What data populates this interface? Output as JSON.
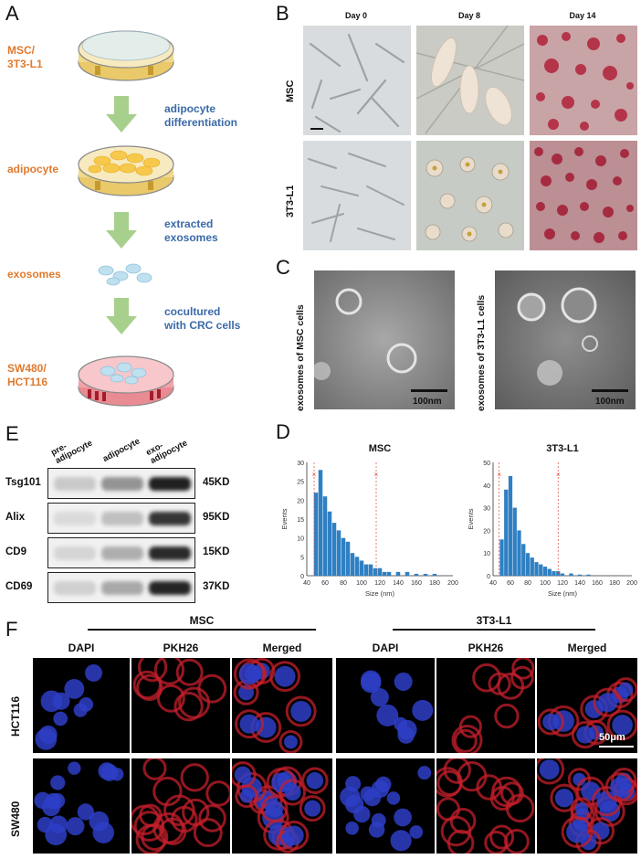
{
  "panels": {
    "a": {
      "letter": "A",
      "stage1": [
        "MSC/",
        "3T3-L1"
      ],
      "step1": [
        "adipocyte",
        "differentiation"
      ],
      "stage2": "adipocyte",
      "step2": [
        "extracted",
        "exosomes"
      ],
      "stage3": "exosomes",
      "step3": [
        "cocultured",
        "with CRC cells"
      ],
      "stage4": [
        "SW480/",
        "HCT116"
      ]
    },
    "b": {
      "letter": "B",
      "columns": [
        "Day 0",
        "Day 8",
        "Day 14"
      ],
      "rows": [
        "MSC",
        "3T3-L1"
      ]
    },
    "c": {
      "letter": "C",
      "left_label": "exosomes of MSC cells",
      "right_label": "exosomes of 3T3-L1 cells",
      "scale": "100nm"
    },
    "e": {
      "letter": "E",
      "lanes": [
        [
          "pre-",
          "adipocyte"
        ],
        [
          "adipocyte"
        ],
        [
          "exo-",
          "adipocyte"
        ]
      ],
      "proteins": [
        {
          "name": "Tsg101",
          "kd": "45KD",
          "intensity": [
            0.18,
            0.42,
            0.95
          ]
        },
        {
          "name": "Alix",
          "kd": "95KD",
          "intensity": [
            0.1,
            0.22,
            0.85
          ]
        },
        {
          "name": "CD9",
          "kd": "15KD",
          "intensity": [
            0.12,
            0.3,
            0.9
          ]
        },
        {
          "name": "CD69",
          "kd": "37KD",
          "intensity": [
            0.15,
            0.32,
            0.92
          ]
        }
      ]
    },
    "d": {
      "letter": "D"
    },
    "f": {
      "letter": "F",
      "groups": [
        "MSC",
        "3T3-L1"
      ],
      "channels": [
        "DAPI",
        "PKH26",
        "Merged"
      ],
      "rows": [
        "HCT116",
        "SW480"
      ],
      "scale": "50μm"
    }
  },
  "chart_data": [
    {
      "type": "bar",
      "title": "MSC",
      "xlabel": "Size (nm)",
      "ylabel": "Events",
      "xlim": [
        40,
        200
      ],
      "ylim": [
        0,
        30
      ],
      "xticks": [
        40,
        60,
        80,
        100,
        120,
        140,
        160,
        180,
        200
      ],
      "yticks": [
        0,
        5,
        10,
        15,
        20,
        25,
        30
      ],
      "markers_x": [
        48,
        116
      ],
      "x": [
        50,
        55,
        60,
        65,
        70,
        75,
        80,
        85,
        90,
        95,
        100,
        105,
        110,
        115,
        120,
        125,
        130,
        140,
        150,
        160,
        170,
        180
      ],
      "values": [
        22,
        28,
        21,
        17,
        14,
        12,
        10,
        9,
        6,
        5,
        4,
        3,
        3,
        2,
        2,
        1,
        1,
        1,
        1,
        0.5,
        0.5,
        0.5
      ]
    },
    {
      "type": "bar",
      "title": "3T3-L1",
      "xlabel": "Size (nm)",
      "ylabel": "Events",
      "xlim": [
        40,
        200
      ],
      "ylim": [
        0,
        50
      ],
      "xticks": [
        40,
        60,
        80,
        100,
        120,
        140,
        160,
        180,
        200
      ],
      "yticks": [
        0,
        10,
        20,
        30,
        40,
        50
      ],
      "markers_x": [
        47,
        115
      ],
      "x": [
        50,
        55,
        60,
        65,
        70,
        75,
        80,
        85,
        90,
        95,
        100,
        105,
        110,
        115,
        120,
        130,
        140,
        150
      ],
      "values": [
        16,
        38,
        44,
        30,
        20,
        14,
        10,
        8,
        6,
        5,
        4,
        3,
        2,
        2,
        1,
        1,
        0.5,
        0.5
      ]
    }
  ]
}
